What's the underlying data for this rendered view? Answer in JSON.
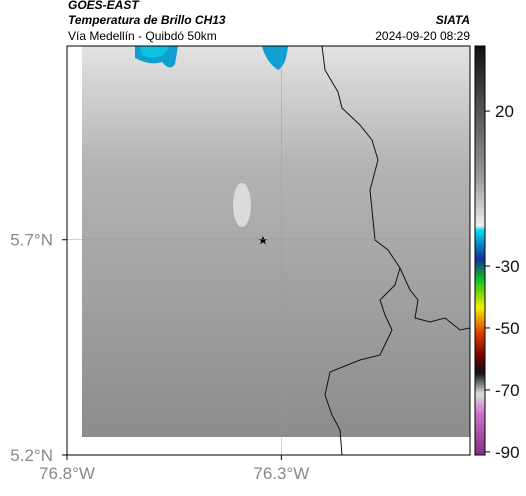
{
  "header": {
    "title": "GOES-EAST",
    "subtitle": "Temperatura de Brillo CH13",
    "route": "Vía Medellín - Quibdó 50km",
    "source": "SIATA",
    "timestamp": "2024-09-20 08:29"
  },
  "map": {
    "lon_lim": [
      -76.8,
      -75.86
    ],
    "lat_lim": [
      5.2,
      6.15
    ],
    "lon_ticks": [
      {
        "value": -76.8,
        "label": "76.8°W"
      },
      {
        "value": -76.3,
        "label": "76.3°W"
      }
    ],
    "lat_ticks": [
      {
        "value": 5.7,
        "label": "5.7°N"
      },
      {
        "value": 5.2,
        "label": "5.2°N"
      }
    ]
  },
  "colorbar": {
    "lim": [
      -91,
      41
    ],
    "ticks": [
      20,
      -30,
      -50,
      -70,
      -90
    ]
  }
}
